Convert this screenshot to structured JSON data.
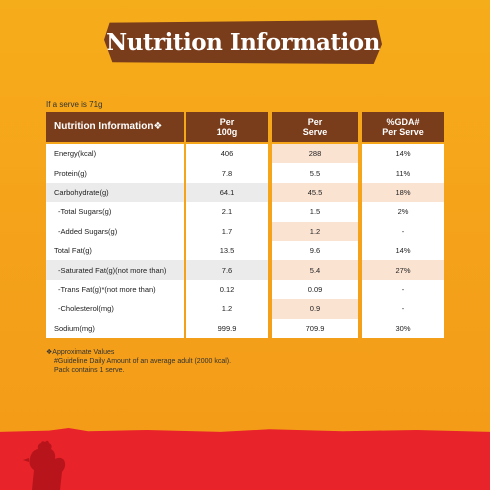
{
  "title": "Nutrition Information",
  "serve_note": "If a serve is 71g",
  "headers": {
    "col0": "Nutrition Information❖",
    "col1_line1": "Per",
    "col1_line2": "100g",
    "col2_line1": "Per",
    "col2_line2": "Serve",
    "col3_line1": "%GDA#",
    "col3_line2": "Per Serve"
  },
  "rows": [
    {
      "name": "Energy(kcal)",
      "per100": "406",
      "perServe": "288",
      "gda": "14%"
    },
    {
      "name": "Protein(g)",
      "per100": "7.8",
      "perServe": "5.5",
      "gda": "11%"
    },
    {
      "name": "Carbohydrate(g)",
      "per100": "64.1",
      "perServe": "45.5",
      "gda": "18%"
    },
    {
      "name": "-Total Sugars(g)",
      "per100": "2.1",
      "perServe": "1.5",
      "gda": "2%"
    },
    {
      "name": "-Added Sugars(g)",
      "per100": "1.7",
      "perServe": "1.2",
      "gda": "-"
    },
    {
      "name": "Total Fat(g)",
      "per100": "13.5",
      "perServe": "9.6",
      "gda": "14%"
    },
    {
      "name": "-Saturated Fat(g)(not more than)",
      "per100": "7.6",
      "perServe": "5.4",
      "gda": "27%"
    },
    {
      "name": "-Trans Fat(g)*(not more than)",
      "per100": "0.12",
      "perServe": "0.09",
      "gda": "-"
    },
    {
      "name": "-Cholesterol(mg)",
      "per100": "1.2",
      "perServe": "0.9",
      "gda": "-"
    },
    {
      "name": "Sodium(mg)",
      "per100": "999.9",
      "perServe": "709.9",
      "gda": "30%"
    }
  ],
  "footnotes": {
    "line1": "❖Approximate Values",
    "line2": "#Guideline Daily Amount of an average adult (2000 kcal).",
    "line3": "Pack contains 1 serve."
  },
  "colors": {
    "header_brown": "#7a3d1c",
    "background_orange": "#f5a31a",
    "bottom_red": "#e8232a",
    "row_shade_grey": "#ebebeb",
    "row_shade_peach": "#fbe3d2"
  }
}
